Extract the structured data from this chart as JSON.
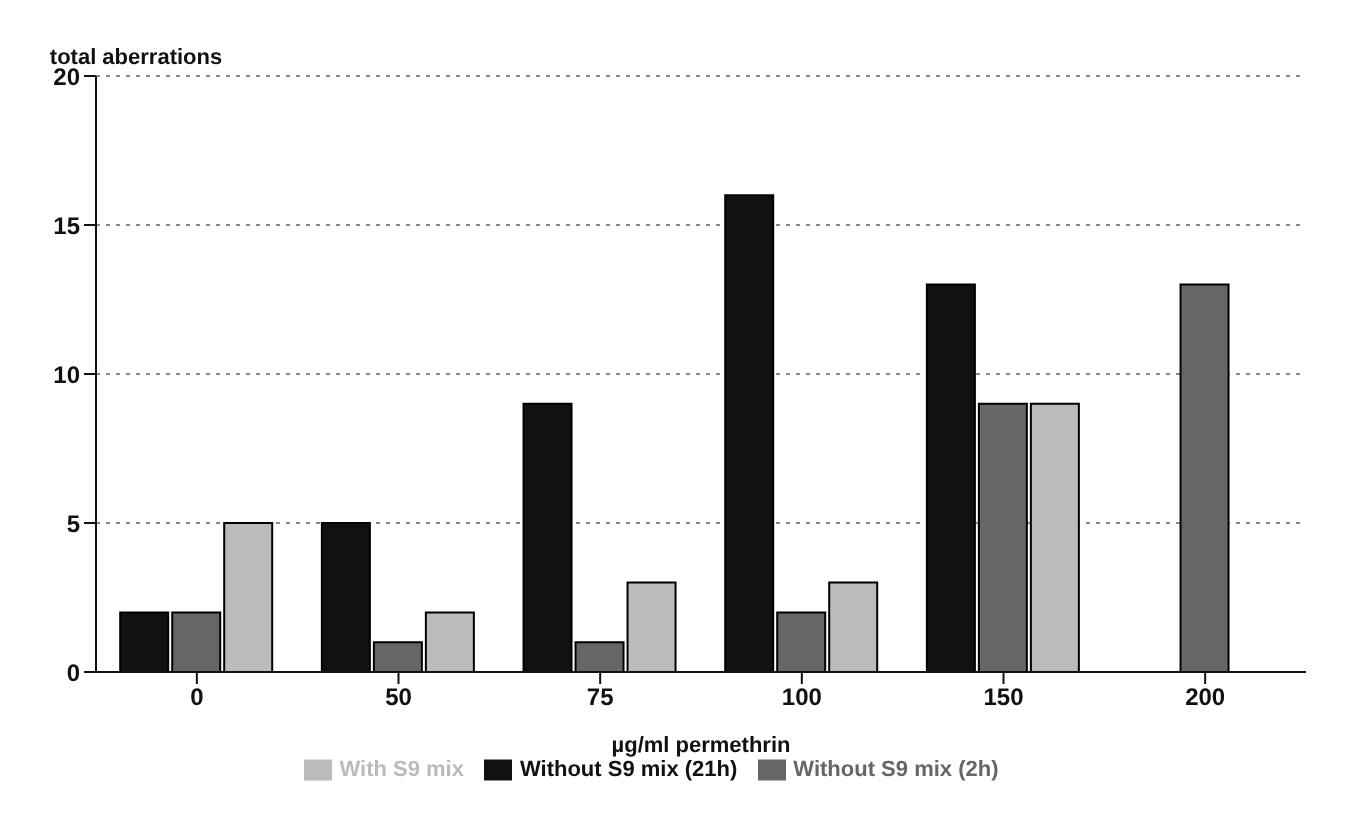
{
  "chart_data": {
    "type": "bar",
    "ylabel": "total aberrations",
    "xlabel": "µg/ml permethrin",
    "categories": [
      "0",
      "50",
      "75",
      "100",
      "150",
      "200"
    ],
    "series": [
      {
        "name": "Without S9 mix (21h)",
        "color": "#111111",
        "values": [
          2,
          5,
          9,
          16,
          13,
          null
        ]
      },
      {
        "name": "Without S9 mix (2h)",
        "color": "#666666",
        "values": [
          2,
          1,
          1,
          2,
          9,
          13
        ]
      },
      {
        "name": "With S9 mix",
        "color": "#bbbbbb",
        "values": [
          5,
          2,
          3,
          3,
          9,
          null
        ]
      }
    ],
    "ylim": [
      0,
      20
    ],
    "yticks": [
      0,
      5,
      10,
      15,
      20
    ],
    "grid": "y",
    "legend": "bottom"
  }
}
